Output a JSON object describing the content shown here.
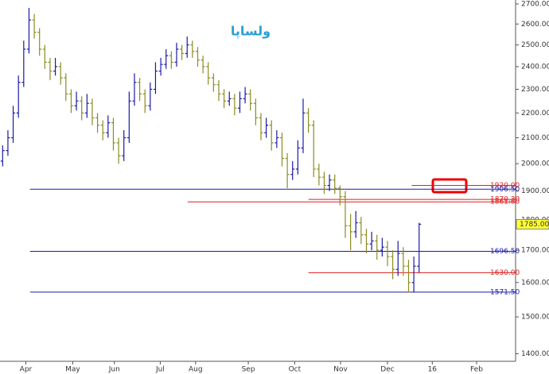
{
  "chart_data": {
    "type": "ohlc",
    "title": "ولساپا",
    "log": true,
    "up_color": "#1a1aa8",
    "down_color": "#8c8c22",
    "xlim": [
      -0.5,
      97.3
    ],
    "xticks": [
      {
        "value": 4.4,
        "label": "Apr"
      },
      {
        "value": 13.3,
        "label": "May"
      },
      {
        "value": 21.2,
        "label": "Jun"
      },
      {
        "value": 29.9,
        "label": "Jul"
      },
      {
        "value": 36.6,
        "label": "Aug"
      },
      {
        "value": 46.6,
        "label": "Sep"
      },
      {
        "value": 55.4,
        "label": "Oct"
      },
      {
        "value": 64.1,
        "label": "Nov"
      },
      {
        "value": 73,
        "label": "Dec"
      },
      {
        "value": 81.5,
        "label": "16"
      },
      {
        "value": 89.9,
        "label": "Feb"
      }
    ],
    "ylim": [
      1380,
      2720
    ],
    "yticks": [
      {
        "value": 1400,
        "label": "1400.00"
      },
      {
        "value": 1500,
        "label": "1500.00"
      },
      {
        "value": 1600,
        "label": "1600.00"
      },
      {
        "value": 1700,
        "label": "1700.00"
      },
      {
        "value": 1800,
        "label": "1800.00"
      },
      {
        "value": 1900,
        "label": "1900.00"
      },
      {
        "value": 2000,
        "label": "2000.00"
      },
      {
        "value": 2100,
        "label": "2100.00"
      },
      {
        "value": 2200,
        "label": "2200.00"
      },
      {
        "value": 2300,
        "label": "2300.00"
      },
      {
        "value": 2400,
        "label": "2400.00"
      },
      {
        "value": 2500,
        "label": "2500.00"
      },
      {
        "value": 2600,
        "label": "2600.00"
      },
      {
        "value": 2700,
        "label": "2700.00"
      }
    ],
    "bars": [
      [
        2010,
        2070,
        1990,
        2050
      ],
      [
        2050,
        2130,
        2030,
        2100
      ],
      [
        2100,
        2230,
        2080,
        2200
      ],
      [
        2200,
        2360,
        2180,
        2330
      ],
      [
        2330,
        2520,
        2310,
        2480
      ],
      [
        2480,
        2680,
        2460,
        2620
      ],
      [
        2620,
        2650,
        2530,
        2560
      ],
      [
        2560,
        2580,
        2450,
        2480
      ],
      [
        2480,
        2500,
        2390,
        2420
      ],
      [
        2420,
        2440,
        2340,
        2380
      ],
      [
        2380,
        2440,
        2360,
        2400
      ],
      [
        2400,
        2420,
        2320,
        2350
      ],
      [
        2350,
        2370,
        2250,
        2280
      ],
      [
        2280,
        2300,
        2200,
        2230
      ],
      [
        2230,
        2290,
        2210,
        2250
      ],
      [
        2250,
        2270,
        2170,
        2200
      ],
      [
        2200,
        2280,
        2180,
        2240
      ],
      [
        2240,
        2260,
        2150,
        2180
      ],
      [
        2180,
        2200,
        2120,
        2150
      ],
      [
        2150,
        2170,
        2090,
        2120
      ],
      [
        2120,
        2190,
        2100,
        2160
      ],
      [
        2160,
        2180,
        2050,
        2080
      ],
      [
        2080,
        2100,
        2000,
        2030
      ],
      [
        2030,
        2130,
        2010,
        2100
      ],
      [
        2100,
        2290,
        2080,
        2250
      ],
      [
        2250,
        2370,
        2230,
        2330
      ],
      [
        2330,
        2350,
        2250,
        2280
      ],
      [
        2280,
        2300,
        2200,
        2230
      ],
      [
        2230,
        2330,
        2210,
        2300
      ],
      [
        2300,
        2420,
        2280,
        2380
      ],
      [
        2380,
        2440,
        2360,
        2410
      ],
      [
        2410,
        2480,
        2390,
        2450
      ],
      [
        2450,
        2470,
        2390,
        2420
      ],
      [
        2420,
        2510,
        2400,
        2480
      ],
      [
        2480,
        2500,
        2430,
        2460
      ],
      [
        2460,
        2540,
        2440,
        2500
      ],
      [
        2500,
        2520,
        2440,
        2470
      ],
      [
        2470,
        2490,
        2400,
        2430
      ],
      [
        2430,
        2450,
        2370,
        2400
      ],
      [
        2400,
        2420,
        2320,
        2350
      ],
      [
        2350,
        2370,
        2290,
        2320
      ],
      [
        2320,
        2340,
        2250,
        2280
      ],
      [
        2280,
        2300,
        2220,
        2250
      ],
      [
        2250,
        2290,
        2230,
        2260
      ],
      [
        2260,
        2280,
        2190,
        2220
      ],
      [
        2220,
        2290,
        2200,
        2260
      ],
      [
        2260,
        2310,
        2240,
        2280
      ],
      [
        2280,
        2300,
        2210,
        2240
      ],
      [
        2240,
        2260,
        2150,
        2180
      ],
      [
        2180,
        2200,
        2090,
        2120
      ],
      [
        2120,
        2180,
        2100,
        2150
      ],
      [
        2150,
        2170,
        2050,
        2080
      ],
      [
        2080,
        2130,
        2060,
        2100
      ],
      [
        2100,
        2120,
        1990,
        2020
      ],
      [
        2020,
        2040,
        1910,
        1960
      ],
      [
        1960,
        2010,
        1940,
        1980
      ],
      [
        1980,
        2090,
        1960,
        2060
      ],
      [
        2060,
        2260,
        2040,
        2200
      ],
      [
        2200,
        2220,
        2120,
        2150
      ],
      [
        2150,
        2170,
        1950,
        1980
      ],
      [
        1980,
        2000,
        1920,
        1950
      ],
      [
        1950,
        1970,
        1890,
        1920
      ],
      [
        1920,
        1960,
        1900,
        1940
      ],
      [
        1940,
        1960,
        1890,
        1910
      ],
      [
        1910,
        1920,
        1850,
        1880
      ],
      [
        1880,
        1900,
        1740,
        1780
      ],
      [
        1780,
        1820,
        1700,
        1760
      ],
      [
        1760,
        1830,
        1740,
        1790
      ],
      [
        1790,
        1810,
        1720,
        1750
      ],
      [
        1750,
        1770,
        1690,
        1720
      ],
      [
        1720,
        1760,
        1700,
        1730
      ],
      [
        1730,
        1750,
        1670,
        1700
      ],
      [
        1700,
        1740,
        1680,
        1710
      ],
      [
        1710,
        1730,
        1650,
        1680
      ],
      [
        1680,
        1700,
        1610,
        1640
      ],
      [
        1640,
        1730,
        1620,
        1690
      ],
      [
        1690,
        1710,
        1620,
        1650
      ],
      [
        1650,
        1670,
        1570,
        1600
      ],
      [
        1600,
        1680,
        1570,
        1650
      ],
      [
        1650,
        1790,
        1630,
        1785
      ]
    ],
    "levels": [
      {
        "value": 1920,
        "label": "1920.00",
        "color": "#e02020",
        "from": 77.6
      },
      {
        "value": 1906.5,
        "label": "1906.50",
        "color": "#1a1aa8",
        "from": 5.2
      },
      {
        "value": 1870.3,
        "label": "1870.30",
        "color": "#e02020",
        "from": 58
      },
      {
        "value": 1861.8,
        "label": "1861.80",
        "color": "#e02020",
        "from": 35.1
      },
      {
        "value": 1696.5,
        "label": "1696.50",
        "color": "#1a1aa8",
        "from": 5.2
      },
      {
        "value": 1630,
        "label": "1630.00",
        "color": "#e02020",
        "from": 58
      },
      {
        "value": 1571.5,
        "label": "1571.50",
        "color": "#1a1aa8",
        "from": 5.2
      }
    ],
    "last_price": {
      "value": 1785,
      "label": "1785.00"
    }
  }
}
